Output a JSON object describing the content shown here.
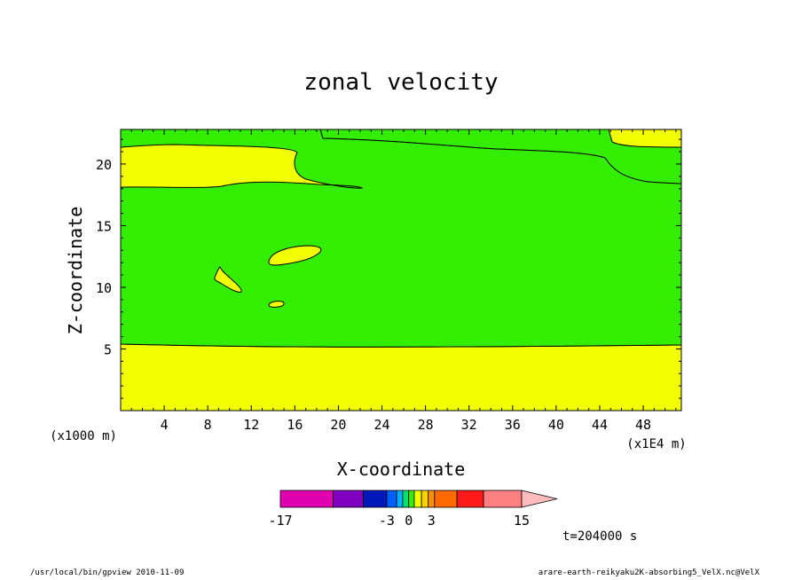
{
  "chart_data": {
    "type": "contour",
    "title": "zonal velocity",
    "xlabel": "X-coordinate",
    "ylabel": "Z-coordinate",
    "x_factor_label": "(x1000 m)",
    "x_unit_label": "(x1E4 m)",
    "xlim": [
      0,
      51.5
    ],
    "ylim": [
      0,
      22.8
    ],
    "x_ticks": [
      "4",
      "8",
      "12",
      "16",
      "20",
      "24",
      "28",
      "32",
      "36",
      "40",
      "44",
      "48"
    ],
    "y_ticks": [
      "5",
      "10",
      "15",
      "20"
    ],
    "regions": [
      {
        "level": "0 to 1.5 (yellow)",
        "description": "lower layer z < ~5.3"
      },
      {
        "level": "-1.5 to 0 (green)",
        "description": "middle layer z ~5.3 to ~18.3"
      },
      {
        "level": "0 to 1.5 (yellow)",
        "description": "upper layer z ~18.3 to ~21.5"
      },
      {
        "level": "-1.5 to 0 (green)",
        "description": "top left z > ~21.5"
      }
    ],
    "colorbar": {
      "ticks": [
        "-17",
        "-3",
        "0",
        "3",
        "15"
      ],
      "colors": [
        "#e000b0",
        "#8000c0",
        "#0018b8",
        "#0060ff",
        "#00b0ff",
        "#00e070",
        "#33ee00",
        "#f2ff00",
        "#ffd000",
        "#ff9000",
        "#ff6a00",
        "#ff1a1a",
        "#ff8080",
        "#ffbcbc"
      ]
    },
    "time_label": "t=204000 s",
    "colors": {
      "positive": "#f2ff00",
      "negative": "#33ee00"
    }
  },
  "footer": {
    "left": "/usr/local/bin/gpview   2010-11-09",
    "right": "arare-earth-reikyaku2K-absorbing5_VelX.nc@VelX"
  }
}
